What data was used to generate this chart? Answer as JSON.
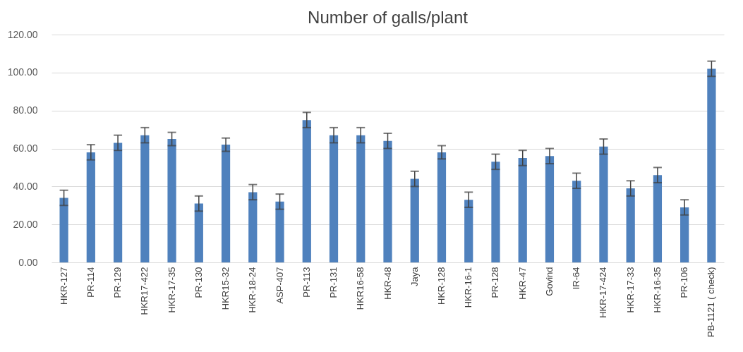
{
  "chart_data": {
    "type": "bar",
    "title": "Number of galls/plant",
    "categories": [
      "HKR-127",
      "PR-114",
      "PR-129",
      "HKR17-422",
      "HKR-17-35",
      "PR-130",
      "HKR15-32",
      "HKR-18-24",
      "ASP-407",
      "PR-113",
      "PR-131",
      "HKR16-58",
      "HKR-48",
      "Jaya",
      "HKR-128",
      "HKR-16-1",
      "PR-128",
      "HKR-47",
      "Govind",
      "IR-64",
      "HKR-17-424",
      "HKR-17-33",
      "HKR-16-35",
      "PR-106",
      "PB-1121 ( check)"
    ],
    "values": [
      34,
      58,
      63,
      67,
      65,
      31,
      62,
      37,
      32,
      75,
      67,
      67,
      64,
      44,
      58,
      33,
      53,
      55,
      56,
      43,
      61,
      39,
      46,
      29,
      102
    ],
    "errors": [
      4,
      4,
      4,
      4,
      3.5,
      4,
      3.5,
      4,
      4,
      4,
      4,
      4,
      4,
      4,
      3.5,
      4,
      4,
      4,
      4,
      4,
      4,
      4,
      4,
      4,
      4
    ],
    "color": "#4f81bd",
    "ylim": [
      0,
      120
    ],
    "yticks": [
      {
        "value": 0,
        "label": "0.00"
      },
      {
        "value": 20,
        "label": "20.00"
      },
      {
        "value": 40,
        "label": "40.00"
      },
      {
        "value": 60,
        "label": "60.00"
      },
      {
        "value": 80,
        "label": "80.00"
      },
      {
        "value": 100,
        "label": "100.00"
      },
      {
        "value": 120,
        "label": "120.00"
      }
    ],
    "grid": "y"
  }
}
